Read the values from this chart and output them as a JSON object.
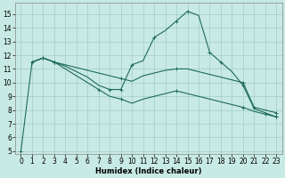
{
  "xlabel": "Humidex (Indice chaleur)",
  "bg_color": "#c8eae4",
  "line_color": "#1e6b5a",
  "grid_color": "#a0cccc",
  "xlim": [
    -0.5,
    23.5
  ],
  "ylim": [
    4.8,
    15.8
  ],
  "yticks": [
    5,
    6,
    7,
    8,
    9,
    10,
    11,
    12,
    13,
    14,
    15
  ],
  "xticks": [
    0,
    1,
    2,
    3,
    4,
    5,
    6,
    7,
    8,
    9,
    10,
    11,
    12,
    13,
    14,
    15,
    16,
    17,
    18,
    19,
    20,
    21,
    22,
    23
  ],
  "line1_x": [
    0,
    1,
    2,
    3,
    4,
    5,
    6,
    7,
    8,
    9,
    10,
    11,
    12,
    13,
    14,
    15,
    16,
    17,
    18,
    19,
    20,
    21,
    22,
    23
  ],
  "line1_y": [
    5.0,
    11.5,
    11.8,
    11.5,
    11.2,
    10.8,
    10.4,
    9.8,
    9.5,
    9.5,
    11.3,
    11.6,
    13.3,
    13.8,
    14.5,
    15.2,
    14.9,
    12.2,
    11.5,
    10.8,
    9.8,
    8.1,
    7.8,
    7.5
  ],
  "line1_markers_x": [
    0,
    2,
    3,
    8,
    9,
    10,
    12,
    14,
    15,
    17,
    18,
    20,
    23
  ],
  "line1_markers_y": [
    5.0,
    11.8,
    11.5,
    9.5,
    9.5,
    11.3,
    13.3,
    14.5,
    15.2,
    12.2,
    11.5,
    9.8,
    7.5
  ],
  "line2_x": [
    1,
    2,
    3,
    4,
    5,
    6,
    7,
    8,
    9,
    10,
    11,
    12,
    13,
    14,
    15,
    16,
    17,
    18,
    19,
    20,
    21,
    22,
    23
  ],
  "line2_y": [
    11.5,
    11.8,
    11.5,
    11.3,
    11.1,
    10.9,
    10.7,
    10.5,
    10.3,
    10.1,
    10.5,
    10.7,
    10.9,
    11.0,
    11.0,
    10.8,
    10.6,
    10.4,
    10.2,
    10.0,
    8.2,
    8.0,
    7.8
  ],
  "line2_markers_x": [
    2,
    3,
    9,
    14,
    20,
    21,
    23
  ],
  "line2_markers_y": [
    11.8,
    11.5,
    10.3,
    11.0,
    10.0,
    8.2,
    7.8
  ],
  "line3_x": [
    1,
    2,
    3,
    4,
    5,
    6,
    7,
    8,
    9,
    10,
    11,
    12,
    13,
    14,
    15,
    16,
    17,
    18,
    19,
    20,
    21,
    22,
    23
  ],
  "line3_y": [
    11.5,
    11.8,
    11.5,
    11.0,
    10.5,
    10.0,
    9.5,
    9.0,
    8.8,
    8.5,
    8.8,
    9.0,
    9.2,
    9.4,
    9.2,
    9.0,
    8.8,
    8.6,
    8.4,
    8.2,
    7.9,
    7.7,
    7.5
  ],
  "line3_markers_x": [
    1,
    2,
    3,
    7,
    9,
    14,
    20,
    22,
    23
  ],
  "line3_markers_y": [
    11.5,
    11.8,
    11.5,
    9.5,
    8.8,
    9.4,
    8.2,
    7.7,
    7.5
  ],
  "tick_fontsize": 5.5,
  "xlabel_fontsize": 6.0
}
